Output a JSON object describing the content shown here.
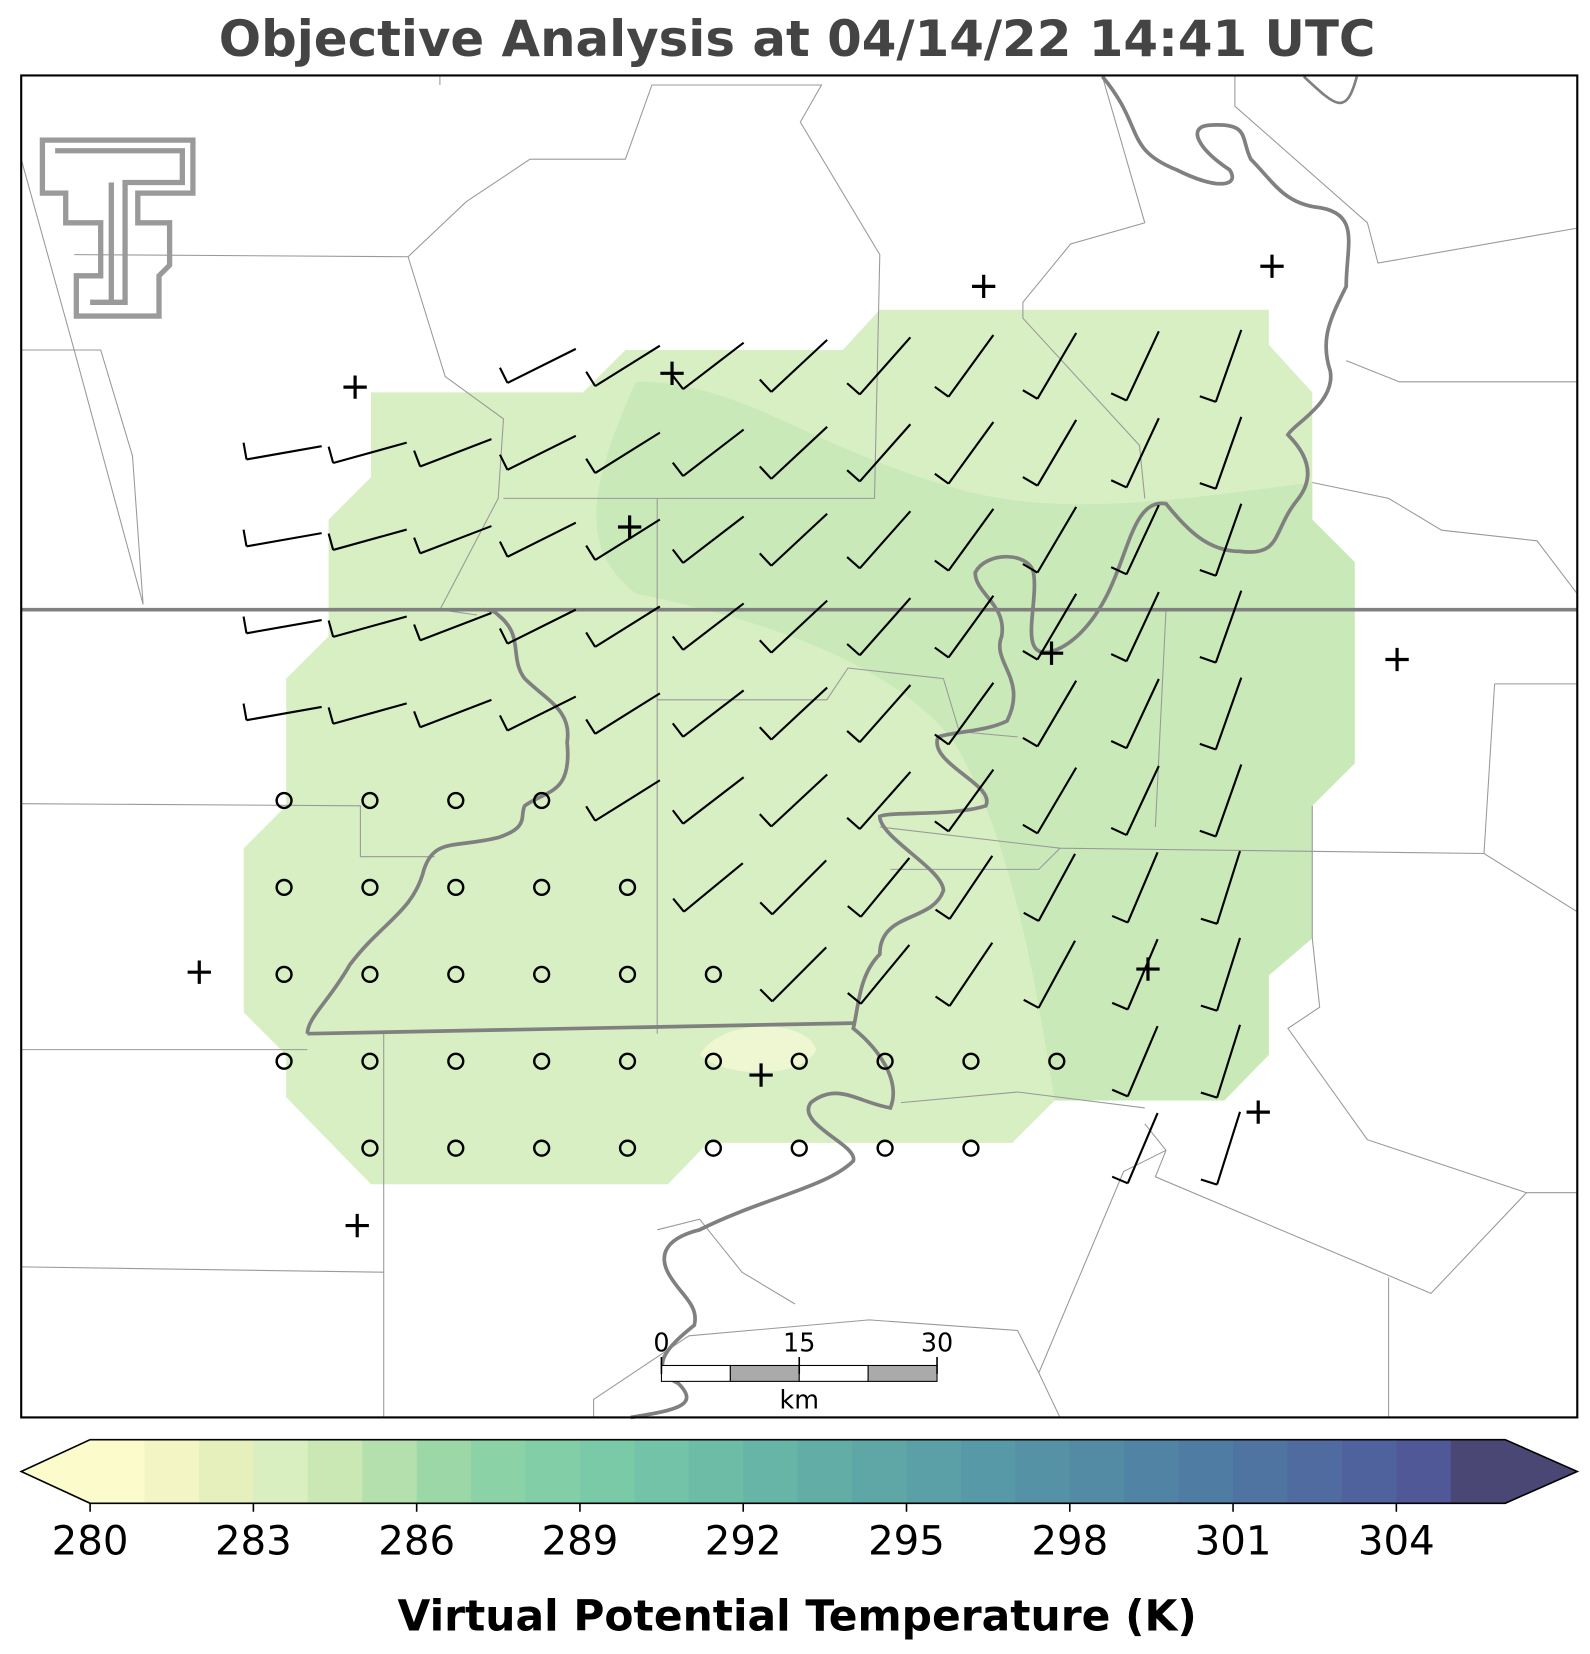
{
  "title": "Objective Analysis at 04/14/22 14:41 UTC",
  "colorbar": {
    "label": "Virtual Potential Temperature (K)",
    "lim": [
      280,
      306
    ],
    "ticks": [
      280,
      283,
      286,
      289,
      292,
      295,
      298,
      301,
      304
    ],
    "colors": [
      "#fbfbcc",
      "#f3f5c4",
      "#e6f0bd",
      "#d9efbf",
      "#c9e8b4",
      "#b3e0ac",
      "#9cd8a7",
      "#8bd2a6",
      "#82cea7",
      "#7acaa8",
      "#72c3a7",
      "#6cbca6",
      "#66b5a6",
      "#62aea6",
      "#5ea7a6",
      "#5aa0a6",
      "#5799a6",
      "#5592a5",
      "#538ba5",
      "#5184a4",
      "#4f7ca3",
      "#4f74a2",
      "#4f6ba0",
      "#50629d",
      "#505897",
      "#4b4775"
    ]
  },
  "scale_bar": {
    "ticks": [
      0,
      15,
      30
    ],
    "unit": "km"
  }
}
